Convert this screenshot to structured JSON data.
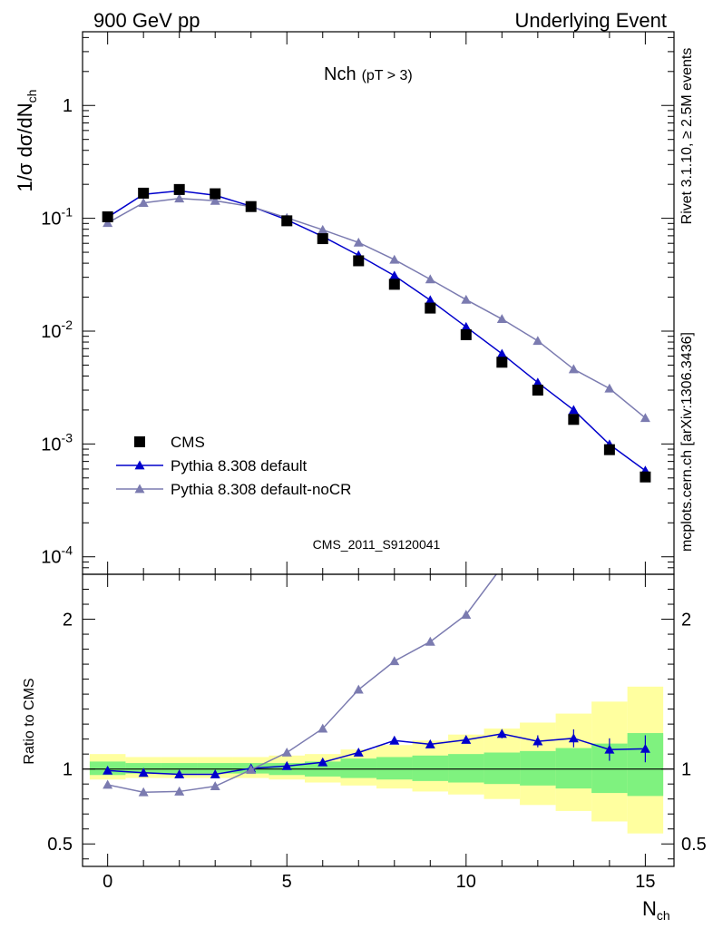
{
  "header": {
    "left": "900 GeV pp",
    "right": "Underlying Event"
  },
  "side_labels": {
    "rivet": "Rivet 3.1.10, ≥ 2.5M events",
    "mcplots": "mcplots.cern.ch [arXiv:1306.3436]"
  },
  "chart_data": {
    "type": "line",
    "title": "Nch",
    "title_sub": "(pT >  3)",
    "ylabel_main": "1/σ dσ/dN",
    "ylabel_main_sub": "ch",
    "ylabel_ratio": "Ratio to CMS",
    "xlabel": "N",
    "xlabel_sub": "ch",
    "analysis_tag": "CMS_2011_S9120041",
    "x_range": [
      -0.7,
      15.8
    ],
    "y_range_main": [
      7e-05,
      4.5
    ],
    "y_scale_main": "log",
    "y_range_ratio": [
      0.35,
      2.3
    ],
    "x_ticks": [
      0,
      5,
      10,
      15
    ],
    "x_tick_labels": [
      "0",
      "5",
      "10",
      "15"
    ],
    "main_tick_labels": [
      {
        "base": "10",
        "exp": "-4",
        "value": 0.0001
      },
      {
        "base": "10",
        "exp": "-3",
        "value": 0.001
      },
      {
        "base": "10",
        "exp": "-2",
        "value": 0.01
      },
      {
        "base": "10",
        "exp": "-1",
        "value": 0.1
      },
      {
        "base": "1",
        "exp": "",
        "value": 1
      }
    ],
    "ratio_tick_labels": [
      {
        "label": "0.5",
        "value": 0.5
      },
      {
        "label": "1",
        "value": 1
      },
      {
        "label": "2",
        "value": 2
      }
    ],
    "legend_position": "lower-left",
    "x": [
      0,
      1,
      2,
      3,
      4,
      5,
      6,
      7,
      8,
      9,
      10,
      11,
      12,
      13,
      14,
      15
    ],
    "series": [
      {
        "name": "CMS",
        "kind": "data",
        "color": "#000000",
        "values": [
          0.103,
          0.167,
          0.18,
          0.165,
          0.127,
          0.095,
          0.066,
          0.042,
          0.026,
          0.016,
          0.0093,
          0.0053,
          0.003,
          0.00165,
          0.00089,
          0.00051
        ]
      },
      {
        "name": "Pythia 8.308 default",
        "kind": "mc",
        "color": "#0000cc",
        "values": [
          0.102,
          0.163,
          0.175,
          0.16,
          0.128,
          0.097,
          0.069,
          0.047,
          0.031,
          0.0188,
          0.0109,
          0.0063,
          0.0035,
          0.002,
          0.00099,
          0.00058
        ],
        "ratio": [
          0.99,
          0.975,
          0.965,
          0.965,
          1.005,
          1.02,
          1.045,
          1.11,
          1.19,
          1.165,
          1.195,
          1.235,
          1.185,
          1.205,
          1.13,
          1.135
        ],
        "ratio_err": [
          0.01,
          0.01,
          0.01,
          0.01,
          0.01,
          0.01,
          0.01,
          0.012,
          0.015,
          0.018,
          0.022,
          0.03,
          0.04,
          0.06,
          0.075,
          0.09
        ]
      },
      {
        "name": "Pythia 8.308 default-noCR",
        "kind": "mc",
        "color": "#7b7bb0",
        "values": [
          0.091,
          0.137,
          0.15,
          0.143,
          0.127,
          0.101,
          0.079,
          0.061,
          0.043,
          0.0288,
          0.019,
          0.0128,
          0.0082,
          0.0046,
          0.0031,
          0.0017
        ],
        "ratio": [
          0.895,
          0.845,
          0.85,
          0.885,
          0.995,
          1.11,
          1.27,
          1.53,
          1.72,
          1.85,
          2.03,
          2.35,
          2.7,
          2.85,
          3.4,
          3.4
        ]
      }
    ],
    "ratio_bands": {
      "inner_color": "#7ff27f",
      "outer_color": "#ffff9f",
      "inner": [
        [
          0.96,
          1.05
        ],
        [
          0.97,
          1.04
        ],
        [
          0.97,
          1.04
        ],
        [
          0.97,
          1.04
        ],
        [
          0.97,
          1.04
        ],
        [
          0.96,
          1.04
        ],
        [
          0.95,
          1.05
        ],
        [
          0.94,
          1.07
        ],
        [
          0.93,
          1.08
        ],
        [
          0.92,
          1.09
        ],
        [
          0.91,
          1.1
        ],
        [
          0.9,
          1.11
        ],
        [
          0.89,
          1.12
        ],
        [
          0.87,
          1.14
        ],
        [
          0.84,
          1.17
        ],
        [
          0.82,
          1.24
        ]
      ],
      "outer": [
        [
          0.93,
          1.1
        ],
        [
          0.94,
          1.08
        ],
        [
          0.94,
          1.08
        ],
        [
          0.94,
          1.08
        ],
        [
          0.94,
          1.08
        ],
        [
          0.93,
          1.09
        ],
        [
          0.91,
          1.1
        ],
        [
          0.89,
          1.13
        ],
        [
          0.87,
          1.16
        ],
        [
          0.85,
          1.19
        ],
        [
          0.83,
          1.23
        ],
        [
          0.8,
          1.27
        ],
        [
          0.76,
          1.31
        ],
        [
          0.72,
          1.37
        ],
        [
          0.65,
          1.45
        ],
        [
          0.57,
          1.55
        ]
      ]
    }
  }
}
